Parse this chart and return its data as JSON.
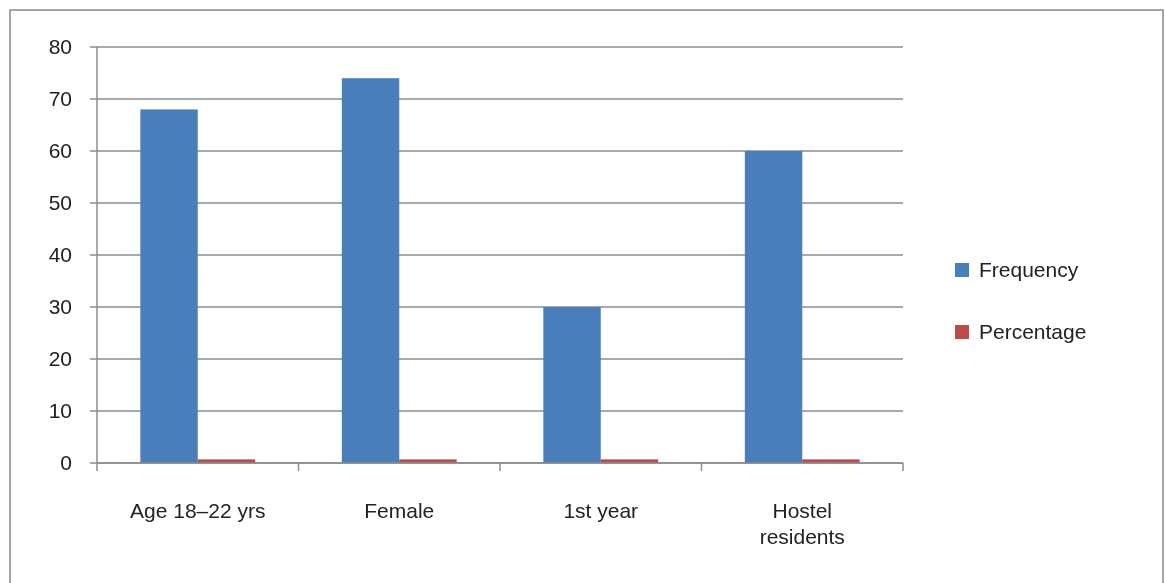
{
  "chart_data": {
    "type": "bar",
    "categories": [
      "Age  18–22 yrs",
      "Female",
      "1st year",
      "Hostel residents"
    ],
    "series": [
      {
        "name": "Frequency",
        "color": "#4a7ebb",
        "values": [
          68,
          74,
          30,
          60
        ]
      },
      {
        "name": "Percentage",
        "color": "#be4b48",
        "values": [
          0.7,
          0.7,
          0.7,
          0.7
        ]
      }
    ],
    "ylim": [
      0,
      80
    ],
    "yticks": [
      0,
      10,
      20,
      30,
      40,
      50,
      60,
      70,
      80
    ],
    "grid": "y",
    "legend": "right"
  }
}
